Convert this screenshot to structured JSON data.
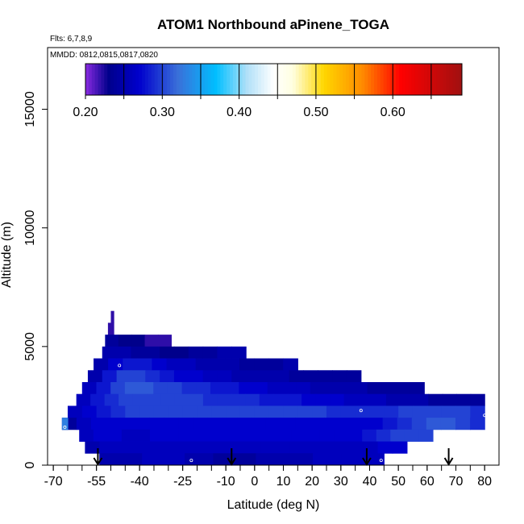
{
  "chart_data": {
    "type": "heatmap",
    "title": "ATOM1 Northbound aPinene_TOGA",
    "flights_note": "Flts: 6,7,8,9",
    "dates_note": "MMDD: 0812,0815,0817,0820",
    "xlabel": "Latitude (deg N)",
    "ylabel": "Altitude (m)",
    "xlim": [
      -72,
      85
    ],
    "ylim": [
      0,
      17600
    ],
    "xticks": [
      -70,
      -55,
      -40,
      -25,
      -10,
      0,
      10,
      20,
      30,
      40,
      50,
      60,
      70,
      80
    ],
    "xtick_labels": [
      "-70",
      "-55",
      "-40",
      "-25",
      "-10",
      "0",
      "10",
      "20",
      "30",
      "40",
      "50",
      "60",
      "70",
      "80"
    ],
    "yticks": [
      0,
      5000,
      10000,
      15000
    ],
    "ytick_labels": [
      "0",
      "5000",
      "10000",
      "15000"
    ],
    "colorbar": {
      "range": [
        0.2,
        0.69
      ],
      "tick_values": [
        0.2,
        0.3,
        0.4,
        0.5,
        0.6
      ],
      "tick_labels": [
        "0.20",
        "0.30",
        "0.40",
        "0.50",
        "0.60"
      ],
      "boundaries": [
        0.2,
        0.25,
        0.3,
        0.35,
        0.4,
        0.45,
        0.5,
        0.55,
        0.6,
        0.65
      ],
      "stops": [
        {
          "v": 0.2,
          "c": "#8a2be2"
        },
        {
          "v": 0.23,
          "c": "#00008b"
        },
        {
          "v": 0.27,
          "c": "#0000cd"
        },
        {
          "v": 0.32,
          "c": "#3a6fd9"
        },
        {
          "v": 0.37,
          "c": "#00bfff"
        },
        {
          "v": 0.41,
          "c": "#b0e0f8"
        },
        {
          "v": 0.445,
          "c": "#ffffff"
        },
        {
          "v": 0.47,
          "c": "#ffffe0"
        },
        {
          "v": 0.51,
          "c": "#ffd700"
        },
        {
          "v": 0.56,
          "c": "#ff8c00"
        },
        {
          "v": 0.61,
          "c": "#ff0000"
        },
        {
          "v": 0.69,
          "c": "#a01010"
        }
      ]
    },
    "bands": [
      {
        "alt": [
          6000,
          6500
        ],
        "lat": [
          -50,
          -49
        ],
        "values": [
          0.22
        ]
      },
      {
        "alt": [
          5500,
          6000
        ],
        "lat": [
          -51,
          -49
        ],
        "values": [
          0.22
        ]
      },
      {
        "alt": [
          5000,
          5500
        ],
        "lat": [
          -52,
          -29
        ],
        "values": [
          0.24,
          0.23,
          0.23,
          0.22,
          0.22
        ]
      },
      {
        "alt": [
          4500,
          5000
        ],
        "lat": [
          -53,
          -3
        ],
        "values": [
          0.25,
          0.25,
          0.24,
          0.24,
          0.23,
          0.23,
          0.24,
          0.24,
          0.25,
          0.25
        ]
      },
      {
        "alt": [
          4000,
          4500
        ],
        "lat": [
          -56,
          15
        ],
        "values": [
          0.25,
          0.27,
          0.28,
          0.28,
          0.27,
          0.26,
          0.26,
          0.25,
          0.25,
          0.25,
          0.24,
          0.24,
          0.24,
          0.25
        ]
      },
      {
        "alt": [
          3500,
          4000
        ],
        "lat": [
          -58,
          37
        ],
        "values": [
          0.25,
          0.28,
          0.3,
          0.3,
          0.29,
          0.28,
          0.27,
          0.27,
          0.26,
          0.26,
          0.25,
          0.25,
          0.25,
          0.25,
          0.24,
          0.24,
          0.24,
          0.24,
          0.24
        ]
      },
      {
        "alt": [
          3000,
          3500
        ],
        "lat": [
          -60,
          59
        ],
        "values": [
          0.26,
          0.28,
          0.3,
          0.31,
          0.31,
          0.3,
          0.3,
          0.29,
          0.29,
          0.28,
          0.28,
          0.27,
          0.27,
          0.26,
          0.26,
          0.26,
          0.25,
          0.25,
          0.25,
          0.25,
          0.24,
          0.24,
          0.24,
          0.24
        ]
      },
      {
        "alt": [
          2500,
          3000
        ],
        "lat": [
          -62,
          80
        ],
        "values": [
          0.26,
          0.28,
          0.29,
          0.3,
          0.3,
          0.3,
          0.3,
          0.3,
          0.3,
          0.29,
          0.29,
          0.29,
          0.29,
          0.28,
          0.28,
          0.28,
          0.27,
          0.27,
          0.27,
          0.26,
          0.26,
          0.26,
          0.25,
          0.25,
          0.25,
          0.24,
          0.24,
          0.24,
          0.24
        ]
      },
      {
        "alt": [
          2000,
          2500
        ],
        "lat": [
          -65,
          80
        ],
        "values": [
          0.26,
          0.27,
          0.28,
          0.29,
          0.3,
          0.3,
          0.3,
          0.3,
          0.3,
          0.3,
          0.3,
          0.3,
          0.3,
          0.3,
          0.3,
          0.3,
          0.3,
          0.3,
          0.29,
          0.29,
          0.29,
          0.29,
          0.29,
          0.3,
          0.3,
          0.3,
          0.3,
          0.3,
          0.29
        ]
      },
      {
        "alt": [
          1500,
          2000
        ],
        "lat": [
          -67,
          80
        ],
        "values": [
          0.24,
          0.26,
          0.27,
          0.27,
          0.27,
          0.27,
          0.27,
          0.27,
          0.27,
          0.27,
          0.27,
          0.27,
          0.27,
          0.27,
          0.27,
          0.27,
          0.27,
          0.27,
          0.27,
          0.27,
          0.27,
          0.27,
          0.28,
          0.29,
          0.3,
          0.31,
          0.31,
          0.3,
          0.29
        ]
      },
      {
        "alt": [
          1500,
          2000
        ],
        "lat": [
          -67,
          -65
        ],
        "values": [
          0.33
        ]
      },
      {
        "alt": [
          1000,
          1500
        ],
        "lat": [
          -61,
          62
        ],
        "values": [
          0.26,
          0.27,
          0.27,
          0.26,
          0.26,
          0.27,
          0.27,
          0.27,
          0.27,
          0.27,
          0.27,
          0.27,
          0.27,
          0.27,
          0.27,
          0.27,
          0.27,
          0.27,
          0.27,
          0.27,
          0.28,
          0.29,
          0.3,
          0.3,
          0.3
        ]
      },
      {
        "alt": [
          500,
          1000
        ],
        "lat": [
          -59,
          53
        ],
        "values": [
          0.25,
          0.26,
          0.26,
          0.26,
          0.26,
          0.26,
          0.26,
          0.26,
          0.26,
          0.26,
          0.26,
          0.26,
          0.26,
          0.26,
          0.26,
          0.26,
          0.26,
          0.26,
          0.26,
          0.26,
          0.27,
          0.27
        ]
      },
      {
        "alt": [
          0,
          500
        ],
        "lat": [
          -54,
          45
        ],
        "values": [
          0.25,
          0.25,
          0.25,
          0.26,
          0.26,
          0.26,
          0.25,
          0.25,
          0.24,
          0.24,
          0.24,
          0.25,
          0.25,
          0.25,
          0.25,
          0.26,
          0.26,
          0.26,
          0.26,
          0.26
        ]
      }
    ],
    "sample_markers": [
      {
        "lat": -66,
        "alt": 2300
      },
      {
        "lat": -66,
        "alt": 1600
      },
      {
        "lat": -47,
        "alt": 4200
      },
      {
        "lat": 37,
        "alt": 2300
      },
      {
        "lat": 80,
        "alt": 3300
      },
      {
        "lat": 80,
        "alt": 2100
      },
      {
        "lat": 44,
        "alt": 200
      },
      {
        "lat": -22,
        "alt": 200
      }
    ],
    "arrows_lat": [
      -54.5,
      -8,
      39,
      67.5
    ],
    "grid": false,
    "legend_placement": "top colorbar"
  }
}
